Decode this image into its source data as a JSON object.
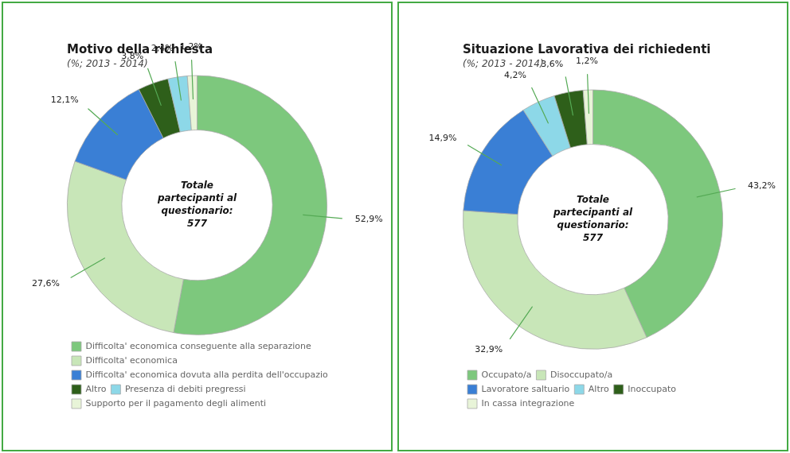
{
  "chart_data": [
    {
      "type": "doughnut",
      "title": "Motivo della richiesta",
      "subtitle": "(%; 2013 - 2014)",
      "annotations": [
        "Totale\npartecipanti al\nquestionario:\n577"
      ],
      "categories": [
        "Difficolta' economica conseguente alla separazione",
        "Difficolta' economica",
        "Difficolta' economica dovuta alla perdita dell'occupazione",
        "Altro",
        "Presenza di debiti pregressi",
        "Supporto per il pagamento degli alimenti"
      ],
      "values": [
        52.9,
        27.6,
        12.1,
        3.8,
        2.4,
        1.2
      ],
      "value_labels": [
        "52,9%",
        "27,6%",
        "12,1%",
        "3,8%",
        "2,4%",
        "1,2%"
      ],
      "colors": [
        "#7dc87d",
        "#c8e6b8",
        "#3a7fd5",
        "#2e5f1a",
        "#8dd8e8",
        "#e8f4d8"
      ],
      "data_labels": true,
      "legend": "bottom"
    },
    {
      "type": "doughnut",
      "title": "Situazione Lavorativa dei richiedenti",
      "subtitle": "(%; 2013 - 2014)",
      "annotations": [
        "Totale\npartecipanti al\nquestionario:\n577"
      ],
      "categories": [
        "Occupato/a",
        "Disoccupato/a",
        "Lavoratore saltuario",
        "Altro",
        "Inoccupato",
        "In cassa integrazione"
      ],
      "values": [
        43.2,
        32.9,
        14.9,
        4.2,
        3.6,
        1.2
      ],
      "value_labels": [
        "43,2%",
        "32,9%",
        "14,9%",
        "4,2%",
        "3,6%",
        "1,2%"
      ],
      "colors": [
        "#7dc87d",
        "#c8e6b8",
        "#3a7fd5",
        "#8dd8e8",
        "#2e5f1a",
        "#e8f4d8"
      ],
      "data_labels": true,
      "legend": "bottom"
    }
  ]
}
